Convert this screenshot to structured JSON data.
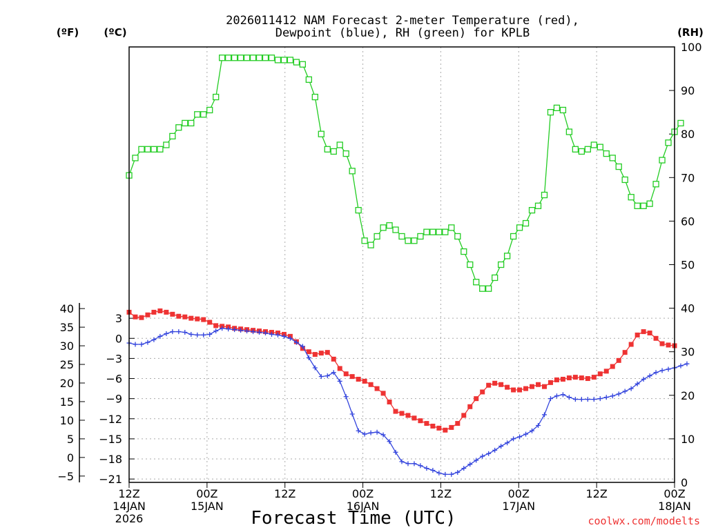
{
  "chart_data": {
    "type": "line",
    "title_line1": "2026011412 NAM Forecast 2-meter Temperature (red),",
    "title_line2": "Dewpoint (blue), RH (green) for KPLB",
    "xlabel": "Forecast Time (UTC)",
    "credit": "coolwx.com/modelts",
    "unit_labels": {
      "fahrenheit": "(ºF)",
      "celsius": "(ºC)",
      "rh": "(RH)"
    },
    "x_range_hours": [
      0,
      84
    ],
    "x_ticks": [
      {
        "hour": 0,
        "time": "12Z",
        "date": "14JAN",
        "year": "2026"
      },
      {
        "hour": 12,
        "time": "00Z",
        "date": "15JAN",
        "year": ""
      },
      {
        "hour": 24,
        "time": "12Z",
        "date": "",
        "year": ""
      },
      {
        "hour": 36,
        "time": "00Z",
        "date": "16JAN",
        "year": ""
      },
      {
        "hour": 48,
        "time": "12Z",
        "date": "",
        "year": ""
      },
      {
        "hour": 60,
        "time": "00Z",
        "date": "17JAN",
        "year": ""
      },
      {
        "hour": 72,
        "time": "12Z",
        "date": "",
        "year": ""
      },
      {
        "hour": 84,
        "time": "00Z",
        "date": "18JAN",
        "year": ""
      }
    ],
    "celsius_range": [
      -21.5,
      43.5
    ],
    "celsius_ticks": [
      "3",
      "0",
      "−3",
      "−6",
      "−9",
      "−12",
      "−15",
      "−18",
      "−21"
    ],
    "celsius_tick_values": [
      3,
      0,
      -3,
      -6,
      -9,
      -12,
      -15,
      -18,
      -21
    ],
    "fahrenheit_ticks": [
      "40",
      "35",
      "30",
      "25",
      "20",
      "15",
      "10",
      "5",
      "0",
      "−5"
    ],
    "fahrenheit_tick_values": [
      40,
      35,
      30,
      25,
      20,
      15,
      10,
      5,
      0,
      -5
    ],
    "rh_range": [
      0,
      100
    ],
    "rh_ticks": [
      "100",
      "90",
      "80",
      "70",
      "60",
      "50",
      "40",
      "30",
      "20",
      "10",
      "0"
    ],
    "rh_tick_values": [
      100,
      90,
      80,
      70,
      60,
      50,
      40,
      30,
      20,
      10,
      0
    ],
    "series": [
      {
        "name": "2-meter Temperature",
        "units": "C",
        "color": "#ee3333",
        "marker": "filled-square",
        "values": [
          3.9,
          3.2,
          3.1,
          3.5,
          3.9,
          4.1,
          3.9,
          3.6,
          3.3,
          3.2,
          3.0,
          2.9,
          2.8,
          2.4,
          1.9,
          1.8,
          1.7,
          1.5,
          1.4,
          1.3,
          1.2,
          1.1,
          1.0,
          0.9,
          0.8,
          0.6,
          0.3,
          -0.5,
          -1.5,
          -2.0,
          -2.4,
          -2.2,
          -2.1,
          -3.1,
          -4.5,
          -5.3,
          -5.7,
          -6.1,
          -6.4,
          -6.9,
          -7.5,
          -8.2,
          -9.5,
          -10.9,
          -11.2,
          -11.5,
          -11.9,
          -12.3,
          -12.7,
          -13.1,
          -13.4,
          -13.7,
          -13.3,
          -12.7,
          -11.5,
          -10.2,
          -9.0,
          -8.0,
          -7.0,
          -6.7,
          -6.9,
          -7.3,
          -7.7,
          -7.7,
          -7.5,
          -7.2,
          -6.9,
          -7.2,
          -6.6,
          -6.2,
          -6.1,
          -5.9,
          -5.8,
          -5.9,
          -6.0,
          -5.8,
          -5.3,
          -4.9,
          -4.2,
          -3.3,
          -2.1,
          -0.9,
          0.5,
          1.0,
          0.8,
          0.0,
          -0.8,
          -1.0,
          -1.1
        ]
      },
      {
        "name": "Dewpoint",
        "units": "C",
        "color": "#3344dd",
        "marker": "plus",
        "values": [
          -0.7,
          -0.9,
          -0.9,
          -0.6,
          -0.2,
          0.3,
          0.7,
          1.0,
          1.0,
          0.9,
          0.6,
          0.5,
          0.5,
          0.6,
          1.1,
          1.5,
          1.4,
          1.3,
          1.2,
          1.1,
          1.0,
          0.9,
          0.8,
          0.6,
          0.5,
          0.3,
          0.0,
          -0.6,
          -1.2,
          -2.9,
          -4.4,
          -5.7,
          -5.6,
          -5.1,
          -6.4,
          -8.7,
          -11.3,
          -13.8,
          -14.3,
          -14.1,
          -14.0,
          -14.4,
          -15.4,
          -17.0,
          -18.4,
          -18.7,
          -18.7,
          -19.0,
          -19.4,
          -19.7,
          -20.1,
          -20.3,
          -20.3,
          -20.0,
          -19.4,
          -18.8,
          -18.2,
          -17.6,
          -17.2,
          -16.7,
          -16.1,
          -15.6,
          -15.0,
          -14.7,
          -14.3,
          -13.8,
          -13.0,
          -11.4,
          -9.0,
          -8.6,
          -8.4,
          -8.8,
          -9.1,
          -9.1,
          -9.1,
          -9.1,
          -9.0,
          -8.8,
          -8.6,
          -8.3,
          -7.9,
          -7.5,
          -6.8,
          -6.1,
          -5.6,
          -5.1,
          -4.8,
          -4.6,
          -4.4,
          -4.1,
          -3.8
        ]
      },
      {
        "name": "Relative Humidity",
        "units": "%",
        "color": "#22cc22",
        "marker": "open-square",
        "values": [
          70.5,
          74.5,
          76.5,
          76.5,
          76.5,
          76.5,
          77.5,
          79.5,
          81.5,
          82.5,
          82.5,
          84.5,
          84.5,
          85.5,
          88.5,
          97.5,
          97.5,
          97.5,
          97.5,
          97.5,
          97.5,
          97.5,
          97.5,
          97.5,
          97.0,
          97.0,
          97.0,
          96.5,
          96.0,
          92.5,
          88.5,
          80.0,
          76.5,
          76.0,
          77.5,
          75.5,
          71.5,
          62.5,
          55.5,
          54.5,
          56.5,
          58.5,
          59.0,
          58.0,
          56.5,
          55.5,
          55.5,
          56.5,
          57.5,
          57.5,
          57.5,
          57.5,
          58.5,
          56.5,
          53.0,
          50.0,
          46.0,
          44.5,
          44.5,
          47.0,
          50.0,
          52.0,
          56.5,
          58.5,
          59.5,
          62.5,
          63.5,
          66.0,
          85.0,
          86.0,
          85.5,
          80.5,
          76.5,
          76.0,
          76.5,
          77.5,
          77.0,
          75.5,
          74.5,
          72.5,
          69.5,
          65.5,
          63.5,
          63.5,
          64.0,
          68.5,
          74.0,
          78.0,
          80.5,
          82.5
        ]
      }
    ]
  }
}
